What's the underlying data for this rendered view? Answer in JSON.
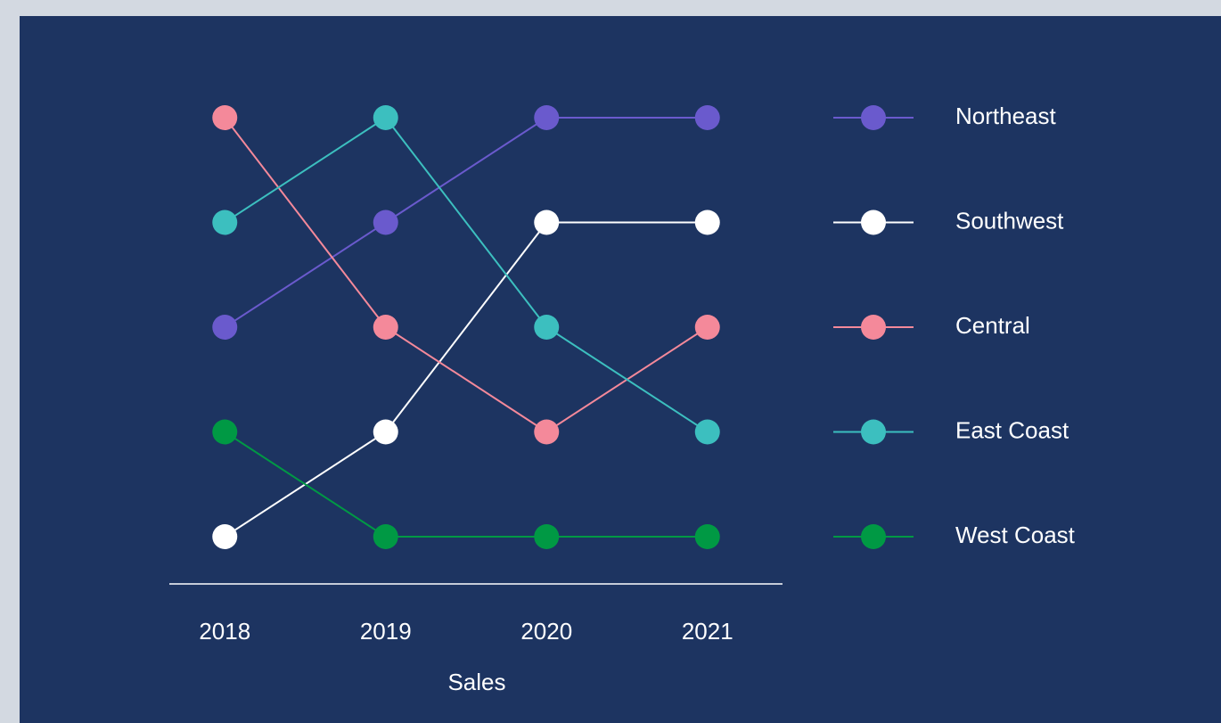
{
  "chart_data": {
    "type": "line",
    "x_label": "Sales",
    "categories": [
      "2018",
      "2019",
      "2020",
      "2021"
    ],
    "series": [
      {
        "name": "Northeast",
        "color": "#6a5acd",
        "values": [
          3,
          2,
          1,
          1
        ]
      },
      {
        "name": "Southwest",
        "color": "#ffffff",
        "values": [
          5,
          4,
          2,
          2
        ]
      },
      {
        "name": "Central",
        "color": "#f4899a",
        "values": [
          1,
          3,
          4,
          3
        ]
      },
      {
        "name": "East Coast",
        "color": "#3cbfbf",
        "values": [
          2,
          1,
          3,
          4
        ]
      },
      {
        "name": "West Coast",
        "color": "#009944",
        "values": [
          4,
          5,
          5,
          5
        ]
      }
    ],
    "ylim": [
      5.5,
      0.5
    ],
    "legend": "right"
  }
}
